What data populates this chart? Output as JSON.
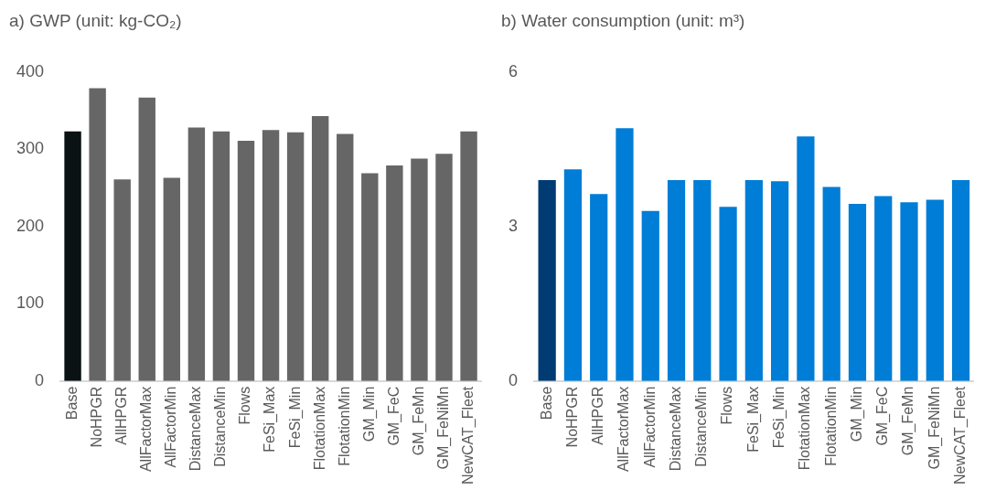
{
  "chart_data": [
    {
      "type": "bar",
      "title": "a) GWP (unit: kg-CO₂)",
      "categories": [
        "Base",
        "NoHPGR",
        "AllHPGR",
        "AllFactorMax",
        "AllFactorMin",
        "DistanceMax",
        "DistanceMin",
        "Flows",
        "FeSi_Max",
        "FeSi_Min",
        "FlotationMax",
        "FlotationMin",
        "GM_Min",
        "GM_FeC",
        "GM_FeMn",
        "GM_FeNiMn",
        "NewCAT_Fleet"
      ],
      "values": [
        323,
        379,
        261,
        367,
        263,
        328,
        323,
        311,
        325,
        322,
        343,
        320,
        269,
        279,
        288,
        294,
        323
      ],
      "colors": [
        "#0a1214",
        "#666666",
        "#666666",
        "#666666",
        "#666666",
        "#666666",
        "#666666",
        "#666666",
        "#666666",
        "#666666",
        "#666666",
        "#666666",
        "#666666",
        "#666666",
        "#666666",
        "#666666",
        "#666666"
      ],
      "ylim": [
        0,
        400
      ],
      "yticks": [
        0,
        100,
        200,
        300,
        400
      ],
      "grid": false,
      "legend": false
    },
    {
      "type": "bar",
      "title": "b) Water consumption (unit: m³)",
      "categories": [
        "Base",
        "NoHPGR",
        "AllHPGR",
        "AllFactorMax",
        "AllFactorMin",
        "DistanceMax",
        "DistanceMin",
        "Flows",
        "FeSi_Max",
        "FeSi_Min",
        "FlotationMax",
        "FlotationMin",
        "GM_Min",
        "GM_FeC",
        "GM_FeMn",
        "GM_FeNiMn",
        "NewCAT_Fleet"
      ],
      "values": [
        3.9,
        4.11,
        3.63,
        4.91,
        3.3,
        3.9,
        3.9,
        3.38,
        3.9,
        3.88,
        4.75,
        3.77,
        3.44,
        3.59,
        3.47,
        3.52,
        3.9
      ],
      "colors": [
        "#003b73",
        "#007dd6",
        "#007dd6",
        "#007dd6",
        "#007dd6",
        "#007dd6",
        "#007dd6",
        "#007dd6",
        "#007dd6",
        "#007dd6",
        "#007dd6",
        "#007dd6",
        "#007dd6",
        "#007dd6",
        "#007dd6",
        "#007dd6",
        "#007dd6"
      ],
      "ylim": [
        0,
        6
      ],
      "yticks": [
        0,
        3,
        6
      ],
      "grid": false,
      "legend": false
    }
  ]
}
